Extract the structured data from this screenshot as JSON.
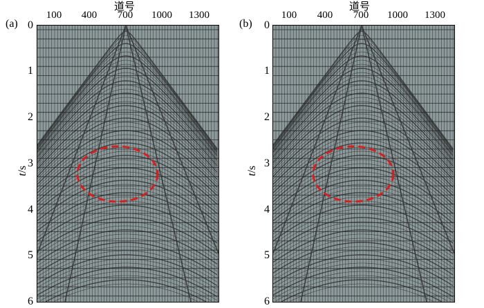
{
  "figure": {
    "panels": [
      {
        "label": "(a)",
        "x_axis_title": "道号",
        "x_ticks": [
          "100",
          "400",
          "700",
          "1000",
          "1300"
        ],
        "y_axis_title_var": "t",
        "y_axis_title_unit": "/s",
        "y_ticks": [
          "0",
          "1",
          "2",
          "3",
          "4",
          "5",
          "6"
        ]
      },
      {
        "label": "(b)",
        "x_axis_title": "道号",
        "x_ticks": [
          "100",
          "400",
          "700",
          "1000",
          "1300"
        ],
        "y_axis_title_var": "t",
        "y_axis_title_unit": "/s",
        "y_ticks": [
          "0",
          "1",
          "2",
          "3",
          "4",
          "5",
          "6"
        ]
      }
    ],
    "colors": {
      "background": "#8d9a9c",
      "grid": "#1a1a1a",
      "highlight_ellipse": "#d42020"
    }
  }
}
